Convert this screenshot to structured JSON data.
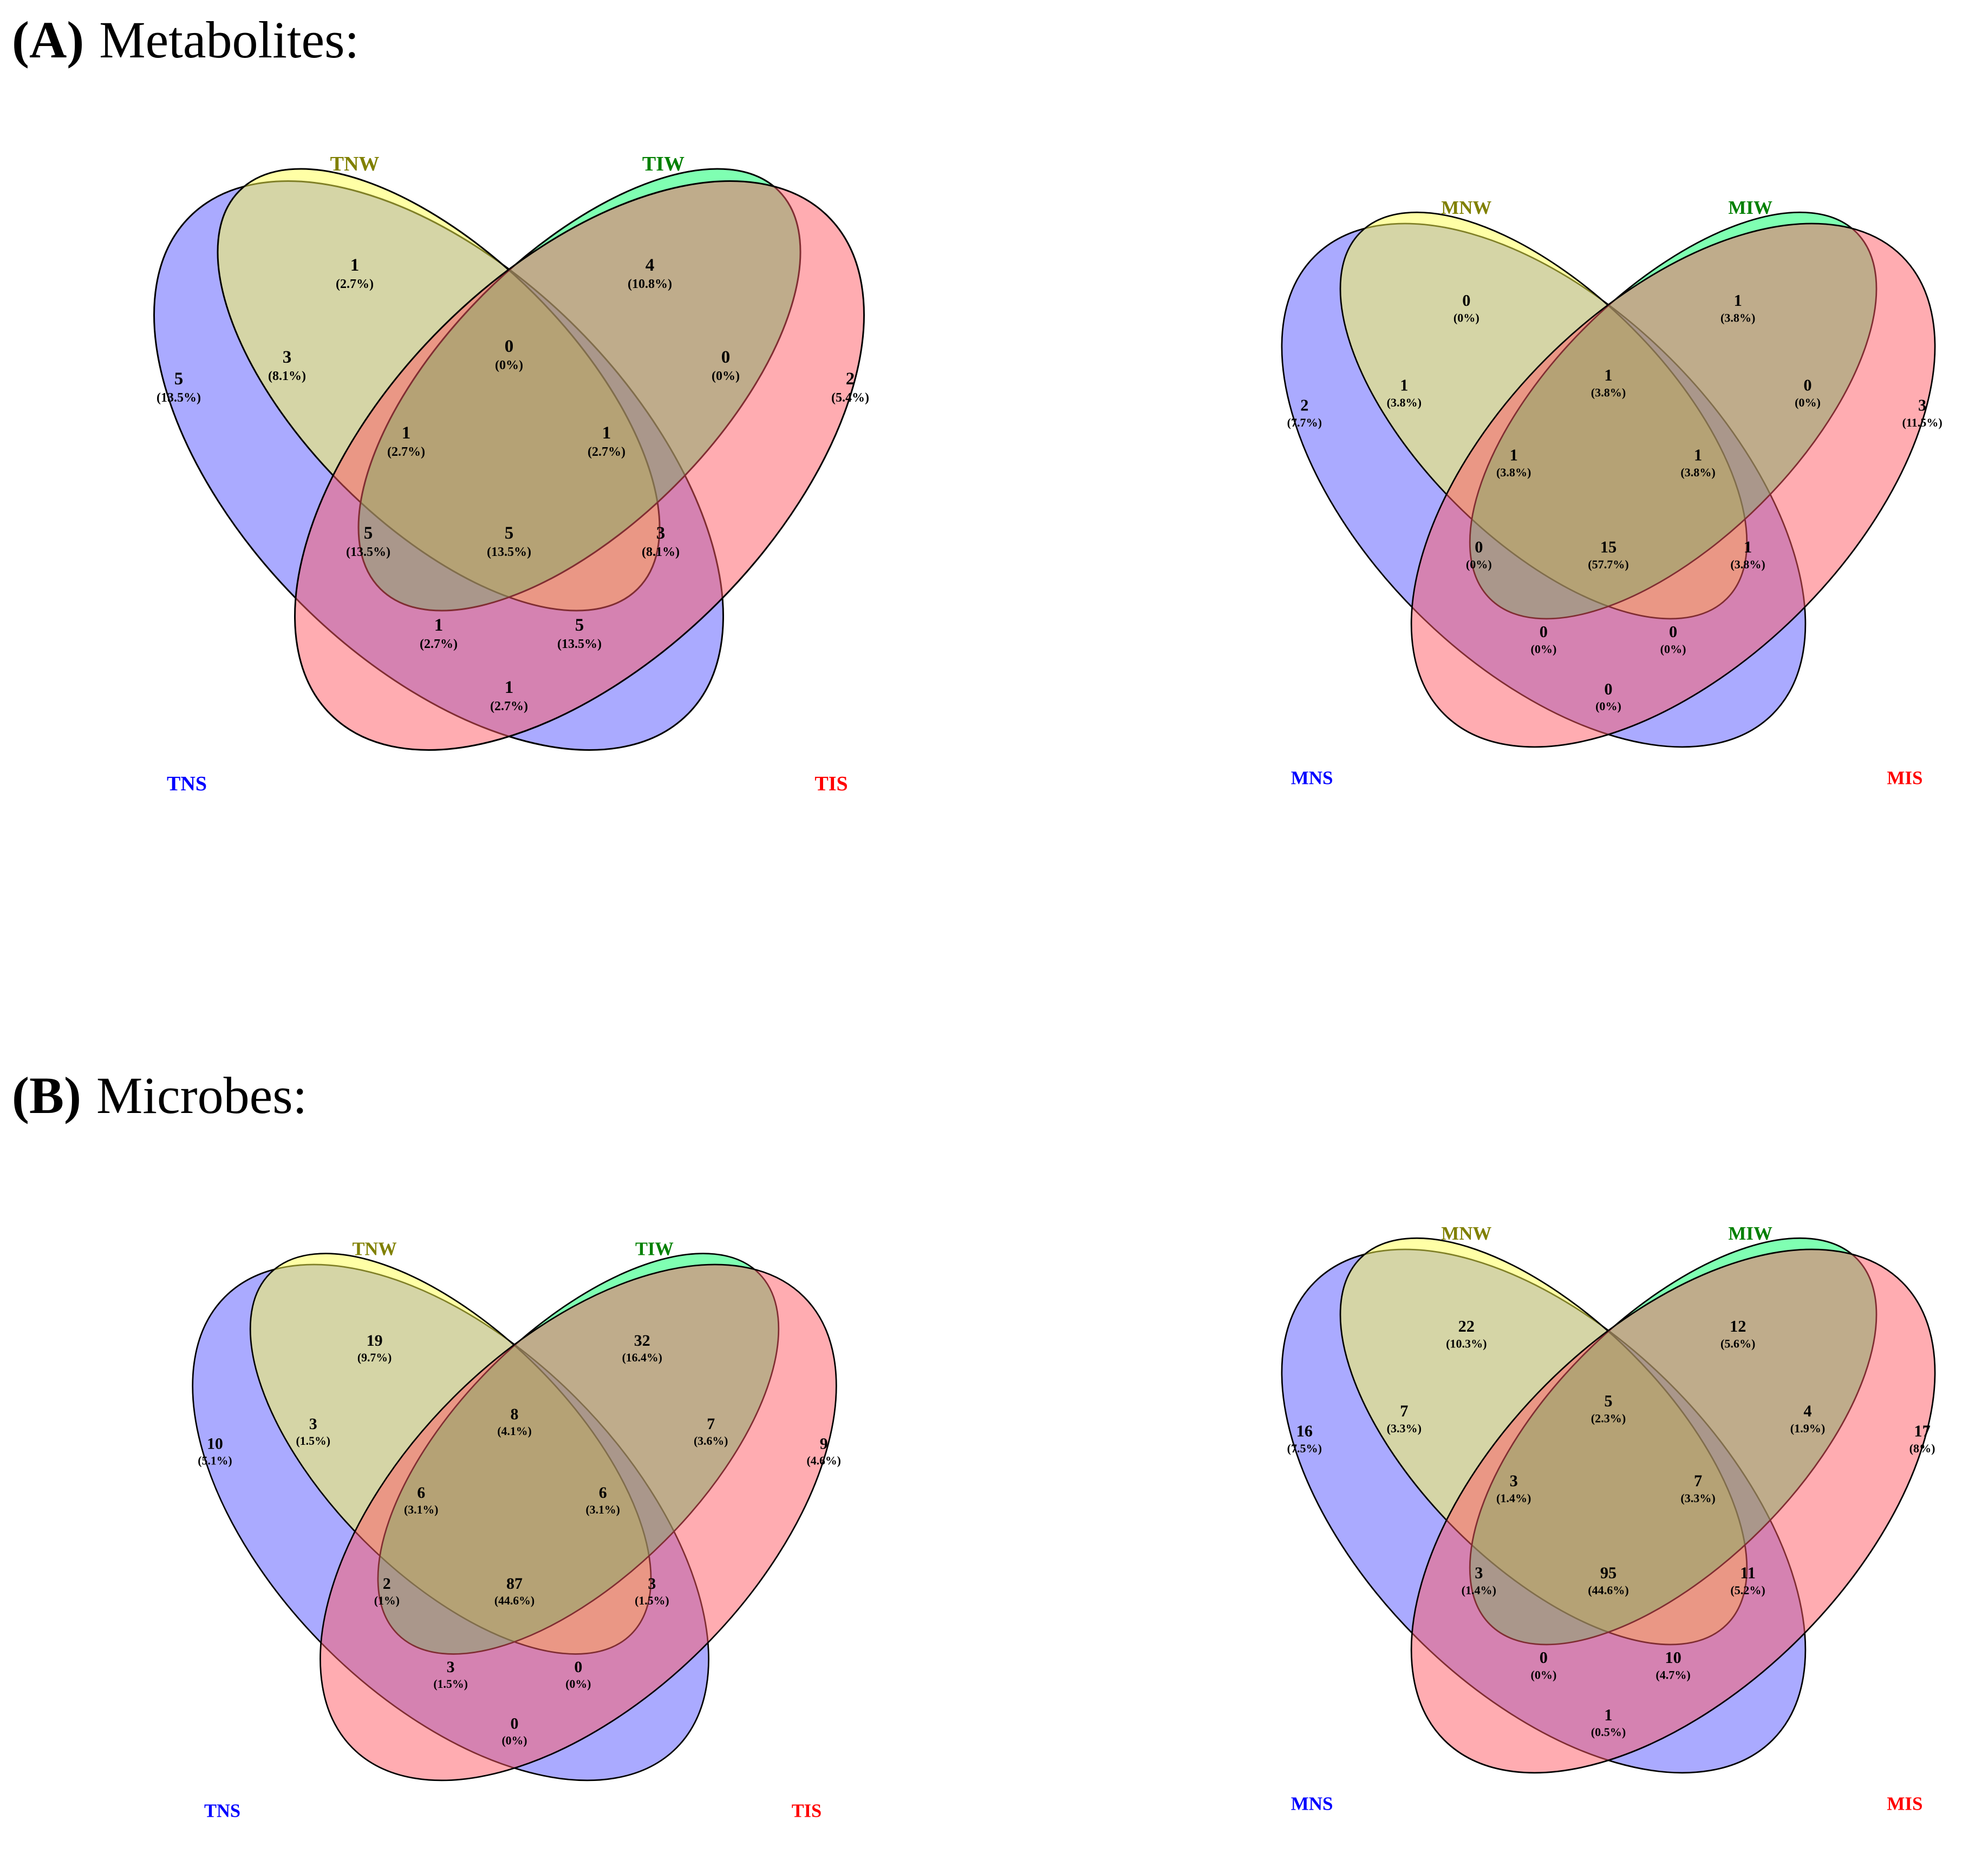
{
  "sections": [
    {
      "id": "A",
      "letter": "(A)",
      "title": "Metabolites:"
    },
    {
      "id": "B",
      "letter": "(B)",
      "title": "Microbes:"
    }
  ],
  "colors": {
    "set1_fill": "#ffff4d",
    "set1_label": "#808000",
    "set2_fill": "#00ff66",
    "set2_label": "#008000",
    "set3_fill": "#5555ff",
    "set3_label": "#0000ff",
    "set4_fill": "#ff5a64",
    "set4_label": "#ff0000",
    "stroke": "#000000"
  },
  "chart_data": [
    {
      "type": "venn-4",
      "section": "A",
      "sets": [
        "TNW",
        "TIW",
        "TNS",
        "TIS"
      ],
      "regions": [
        {
          "sets": [
            "TNS"
          ],
          "count": "5",
          "percent": "(13.5%)"
        },
        {
          "sets": [
            "TNW"
          ],
          "count": "1",
          "percent": "(2.7%)"
        },
        {
          "sets": [
            "TIW"
          ],
          "count": "4",
          "percent": "(10.8%)"
        },
        {
          "sets": [
            "TIS"
          ],
          "count": "2",
          "percent": "(5.4%)"
        },
        {
          "sets": [
            "TNS",
            "TNW"
          ],
          "count": "3",
          "percent": "(8.1%)"
        },
        {
          "sets": [
            "TNW",
            "TIW"
          ],
          "count": "0",
          "percent": "(0%)"
        },
        {
          "sets": [
            "TIW",
            "TIS"
          ],
          "count": "0",
          "percent": "(0%)"
        },
        {
          "sets": [
            "TNS",
            "TNW",
            "TIW"
          ],
          "count": "1",
          "percent": "(2.7%)"
        },
        {
          "sets": [
            "TNW",
            "TIW",
            "TIS"
          ],
          "count": "1",
          "percent": "(2.7%)"
        },
        {
          "sets": [
            "TNS",
            "TIW"
          ],
          "count": "5",
          "percent": "(13.5%)"
        },
        {
          "sets": [
            "TNS",
            "TNW",
            "TIW",
            "TIS"
          ],
          "count": "5",
          "percent": "(13.5%)"
        },
        {
          "sets": [
            "TNW",
            "TIS"
          ],
          "count": "3",
          "percent": "(8.1%)"
        },
        {
          "sets": [
            "TNS",
            "TIW",
            "TIS"
          ],
          "count": "1",
          "percent": "(2.7%)"
        },
        {
          "sets": [
            "TNS",
            "TNW",
            "TIS"
          ],
          "count": "5",
          "percent": "(13.5%)"
        },
        {
          "sets": [
            "TNS",
            "TIS"
          ],
          "count": "1",
          "percent": "(2.7%)"
        }
      ]
    },
    {
      "type": "venn-4",
      "section": "A",
      "sets": [
        "MNW",
        "MIW",
        "MNS",
        "MIS"
      ],
      "regions": [
        {
          "sets": [
            "MNS"
          ],
          "count": "2",
          "percent": "(7.7%)"
        },
        {
          "sets": [
            "MNW"
          ],
          "count": "0",
          "percent": "(0%)"
        },
        {
          "sets": [
            "MIW"
          ],
          "count": "1",
          "percent": "(3.8%)"
        },
        {
          "sets": [
            "MIS"
          ],
          "count": "3",
          "percent": "(11.5%)"
        },
        {
          "sets": [
            "MNS",
            "MNW"
          ],
          "count": "1",
          "percent": "(3.8%)"
        },
        {
          "sets": [
            "MNW",
            "MIW"
          ],
          "count": "1",
          "percent": "(3.8%)"
        },
        {
          "sets": [
            "MIW",
            "MIS"
          ],
          "count": "0",
          "percent": "(0%)"
        },
        {
          "sets": [
            "MNS",
            "MNW",
            "MIW"
          ],
          "count": "1",
          "percent": "(3.8%)"
        },
        {
          "sets": [
            "MNW",
            "MIW",
            "MIS"
          ],
          "count": "1",
          "percent": "(3.8%)"
        },
        {
          "sets": [
            "MNS",
            "MIW"
          ],
          "count": "0",
          "percent": "(0%)"
        },
        {
          "sets": [
            "MNS",
            "MNW",
            "MIW",
            "MIS"
          ],
          "count": "15",
          "percent": "(57.7%)"
        },
        {
          "sets": [
            "MNW",
            "MIS"
          ],
          "count": "1",
          "percent": "(3.8%)"
        },
        {
          "sets": [
            "MNS",
            "MIW",
            "MIS"
          ],
          "count": "0",
          "percent": "(0%)"
        },
        {
          "sets": [
            "MNS",
            "MNW",
            "MIS"
          ],
          "count": "0",
          "percent": "(0%)"
        },
        {
          "sets": [
            "MNS",
            "MIS"
          ],
          "count": "0",
          "percent": "(0%)"
        }
      ]
    },
    {
      "type": "venn-4",
      "section": "B",
      "sets": [
        "TNW",
        "TIW",
        "TNS",
        "TIS"
      ],
      "regions": [
        {
          "sets": [
            "TNS"
          ],
          "count": "10",
          "percent": "(5.1%)"
        },
        {
          "sets": [
            "TNW"
          ],
          "count": "19",
          "percent": "(9.7%)"
        },
        {
          "sets": [
            "TIW"
          ],
          "count": "32",
          "percent": "(16.4%)"
        },
        {
          "sets": [
            "TIS"
          ],
          "count": "9",
          "percent": "(4.6%)"
        },
        {
          "sets": [
            "TNS",
            "TNW"
          ],
          "count": "3",
          "percent": "(1.5%)"
        },
        {
          "sets": [
            "TNW",
            "TIW"
          ],
          "count": "8",
          "percent": "(4.1%)"
        },
        {
          "sets": [
            "TIW",
            "TIS"
          ],
          "count": "7",
          "percent": "(3.6%)"
        },
        {
          "sets": [
            "TNS",
            "TNW",
            "TIW"
          ],
          "count": "6",
          "percent": "(3.1%)"
        },
        {
          "sets": [
            "TNW",
            "TIW",
            "TIS"
          ],
          "count": "6",
          "percent": "(3.1%)"
        },
        {
          "sets": [
            "TNS",
            "TIW"
          ],
          "count": "2",
          "percent": "(1%)"
        },
        {
          "sets": [
            "TNS",
            "TNW",
            "TIW",
            "TIS"
          ],
          "count": "87",
          "percent": "(44.6%)"
        },
        {
          "sets": [
            "TNW",
            "TIS"
          ],
          "count": "3",
          "percent": "(1.5%)"
        },
        {
          "sets": [
            "TNS",
            "TIW",
            "TIS"
          ],
          "count": "3",
          "percent": "(1.5%)"
        },
        {
          "sets": [
            "TNS",
            "TNW",
            "TIS"
          ],
          "count": "0",
          "percent": "(0%)"
        },
        {
          "sets": [
            "TNS",
            "TIS"
          ],
          "count": "0",
          "percent": "(0%)"
        }
      ]
    },
    {
      "type": "venn-4",
      "section": "B",
      "sets": [
        "MNW",
        "MIW",
        "MNS",
        "MIS"
      ],
      "regions": [
        {
          "sets": [
            "MNS"
          ],
          "count": "16",
          "percent": "(7.5%)"
        },
        {
          "sets": [
            "MNW"
          ],
          "count": "22",
          "percent": "(10.3%)"
        },
        {
          "sets": [
            "MIW"
          ],
          "count": "12",
          "percent": "(5.6%)"
        },
        {
          "sets": [
            "MIS"
          ],
          "count": "17",
          "percent": "(8%)"
        },
        {
          "sets": [
            "MNS",
            "MNW"
          ],
          "count": "7",
          "percent": "(3.3%)"
        },
        {
          "sets": [
            "MNW",
            "MIW"
          ],
          "count": "5",
          "percent": "(2.3%)"
        },
        {
          "sets": [
            "MIW",
            "MIS"
          ],
          "count": "4",
          "percent": "(1.9%)"
        },
        {
          "sets": [
            "MNS",
            "MNW",
            "MIW"
          ],
          "count": "3",
          "percent": "(1.4%)"
        },
        {
          "sets": [
            "MNW",
            "MIW",
            "MIS"
          ],
          "count": "7",
          "percent": "(3.3%)"
        },
        {
          "sets": [
            "MNS",
            "MIW"
          ],
          "count": "3",
          "percent": "(1.4%)"
        },
        {
          "sets": [
            "MNS",
            "MNW",
            "MIW",
            "MIS"
          ],
          "count": "95",
          "percent": "(44.6%)"
        },
        {
          "sets": [
            "MNW",
            "MIS"
          ],
          "count": "11",
          "percent": "(5.2%)"
        },
        {
          "sets": [
            "MNS",
            "MIW",
            "MIS"
          ],
          "count": "0",
          "percent": "(0%)"
        },
        {
          "sets": [
            "MNS",
            "MNW",
            "MIS"
          ],
          "count": "10",
          "percent": "(4.7%)"
        },
        {
          "sets": [
            "MNS",
            "MIS"
          ],
          "count": "1",
          "percent": "(0.5%)"
        }
      ]
    }
  ]
}
